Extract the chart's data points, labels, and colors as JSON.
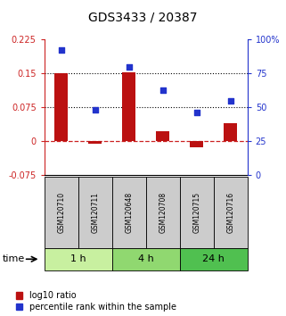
{
  "title": "GDS3433 / 20387",
  "samples": [
    "GSM120710",
    "GSM120711",
    "GSM120648",
    "GSM120708",
    "GSM120715",
    "GSM120716"
  ],
  "groups": [
    {
      "label": "1 h",
      "indices": [
        0,
        1
      ],
      "color": "#c8f0a0"
    },
    {
      "label": "4 h",
      "indices": [
        2,
        3
      ],
      "color": "#90d870"
    },
    {
      "label": "24 h",
      "indices": [
        4,
        5
      ],
      "color": "#50c050"
    }
  ],
  "log10_ratio": [
    0.15,
    -0.005,
    0.152,
    0.022,
    -0.012,
    0.04
  ],
  "percentile_rank": [
    92,
    48,
    80,
    63,
    46,
    55
  ],
  "ylim_left": [
    -0.075,
    0.225
  ],
  "ylim_right": [
    0,
    100
  ],
  "yticks_left": [
    -0.075,
    0,
    0.075,
    0.15,
    0.225
  ],
  "yticks_right": [
    0,
    25,
    50,
    75,
    100
  ],
  "hlines": [
    0.075,
    0.15
  ],
  "bar_color": "#bb1111",
  "dot_color": "#2233cc",
  "zero_line_color": "#cc2222",
  "hline_color": "#000000",
  "bg_color": "#ffffff",
  "sample_box_color": "#cccccc",
  "title_fontsize": 10,
  "tick_fontsize": 7,
  "legend_fontsize": 7
}
